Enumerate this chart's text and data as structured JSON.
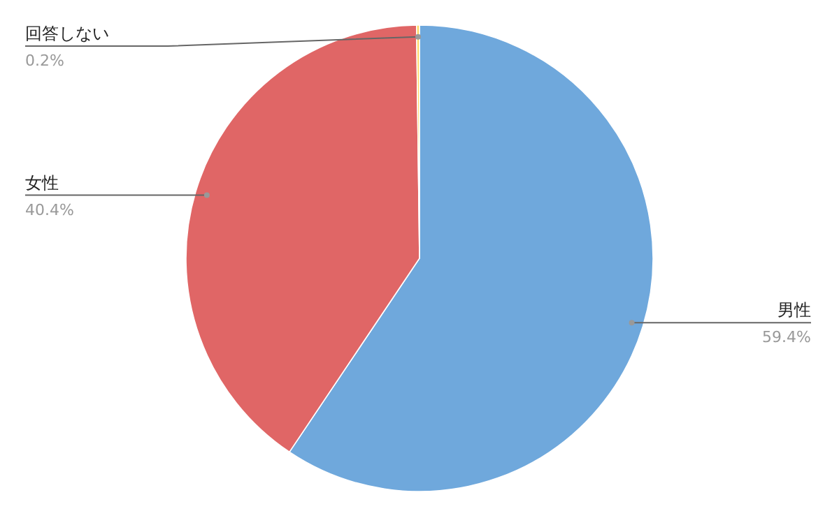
{
  "chart_data": {
    "type": "pie",
    "categories": [
      "男性",
      "女性",
      "回答しない"
    ],
    "values": [
      59.4,
      40.4,
      0.2
    ],
    "colors": [
      "#6fa8dc",
      "#e06666",
      "#ffd966"
    ],
    "value_labels": [
      "59.4%",
      "40.4%",
      "0.2%"
    ],
    "legend": false
  }
}
